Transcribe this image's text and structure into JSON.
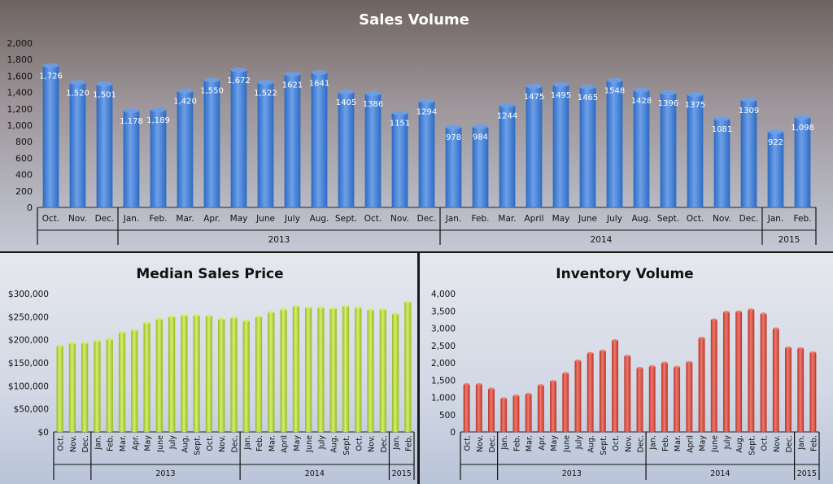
{
  "colors": {
    "sales_bar": "#2f6cc4",
    "sales_bar_light": "#6ea0e8",
    "price_bar": "#9abf2a",
    "price_bar_light": "#d6ef6c",
    "inventory_bar": "#c0392b",
    "inventory_bar_light": "#ee7a6e"
  },
  "chart_data": [
    {
      "type": "bar",
      "title": "Sales Volume",
      "xlabel": "",
      "ylabel": "",
      "ylim": [
        0,
        2000
      ],
      "yticks": [
        "0",
        "200",
        "400",
        "600",
        "800",
        "1,000",
        "1,200",
        "1,400",
        "1,600",
        "1,800",
        "2,000"
      ],
      "categories": [
        "Oct.",
        "Nov.",
        "Dec.",
        "Jan.",
        "Feb.",
        "Mar.",
        "Apr.",
        "May",
        "June",
        "July",
        "Aug.",
        "Sept.",
        "Oct.",
        "Nov.",
        "Dec.",
        "Jan.",
        "Feb.",
        "Mar.",
        "April",
        "May",
        "June",
        "July",
        "Aug.",
        "Sept.",
        "Oct.",
        "Nov.",
        "Dec.",
        "Jan.",
        "Feb."
      ],
      "values": [
        1726,
        1520,
        1501,
        1178,
        1189,
        1420,
        1550,
        1672,
        1522,
        1621,
        1641,
        1405,
        1386,
        1151,
        1294,
        978,
        984,
        1244,
        1475,
        1495,
        1465,
        1548,
        1428,
        1396,
        1375,
        1081,
        1309,
        922,
        1098
      ],
      "data_labels": [
        "1,726",
        "1,520",
        "1,501",
        "1,178",
        "1,189",
        "1,420",
        "1,550",
        "1,672",
        "1,522",
        "1621",
        "1641",
        "1405",
        "1386",
        "1151",
        "1294",
        "978",
        "984",
        "1244",
        "1475",
        "1495",
        "1465",
        "1548",
        "1428",
        "1396",
        "1375",
        "1081",
        "1309",
        "922",
        "1,098"
      ],
      "year_groups": [
        {
          "label": "",
          "start": 0,
          "count": 3
        },
        {
          "label": "2013",
          "start": 3,
          "count": 12
        },
        {
          "label": "2014",
          "start": 15,
          "count": 12
        },
        {
          "label": "2015",
          "start": 27,
          "count": 2
        }
      ]
    },
    {
      "type": "bar",
      "title": "Median Sales Price",
      "xlabel": "",
      "ylabel": "",
      "ylim": [
        0,
        300000
      ],
      "yticks": [
        "$0",
        "$50,000",
        "$100,000",
        "$150,000",
        "$200,000",
        "$250,000",
        "$300,000"
      ],
      "categories": [
        "Oct.",
        "Nov.",
        "Dec.",
        "Jan.",
        "Feb.",
        "Mar.",
        "Apr.",
        "May",
        "June",
        "July",
        "Aug.",
        "Sept.",
        "Oct.",
        "Nov.",
        "Dec.",
        "Jan.",
        "Feb.",
        "Mar.",
        "April",
        "May",
        "June",
        "July",
        "Aug.",
        "Sept.",
        "Oct.",
        "Nov.",
        "Dec.",
        "Jan.",
        "Feb."
      ],
      "values": [
        187000,
        193000,
        193000,
        198000,
        201000,
        216000,
        221000,
        237000,
        245000,
        250000,
        253000,
        253000,
        252000,
        245000,
        248000,
        241000,
        250000,
        260000,
        266000,
        273000,
        270000,
        270000,
        268000,
        273000,
        270000,
        265000,
        266000,
        256000,
        282000
      ],
      "year_groups": [
        {
          "label": "",
          "start": 0,
          "count": 3
        },
        {
          "label": "2013",
          "start": 3,
          "count": 12
        },
        {
          "label": "2014",
          "start": 15,
          "count": 12
        },
        {
          "label": "2015",
          "start": 27,
          "count": 2
        }
      ]
    },
    {
      "type": "bar",
      "title": "Inventory Volume",
      "xlabel": "",
      "ylabel": "",
      "ylim": [
        0,
        4000
      ],
      "yticks": [
        "0",
        "500",
        "1,000",
        "1,500",
        "2,000",
        "2,500",
        "3,000",
        "3,500",
        "4,000"
      ],
      "categories": [
        "Oct.",
        "Nov.",
        "Dec.",
        "Jan.",
        "Feb.",
        "Mar.",
        "Apr.",
        "May",
        "June",
        "July",
        "Aug.",
        "Sept.",
        "Oct.",
        "Nov.",
        "Dec.",
        "Jan.",
        "Feb.",
        "Mar.",
        "April",
        "May",
        "June",
        "July",
        "Aug.",
        "Sept.",
        "Oct.",
        "Nov.",
        "Dec.",
        "Jan.",
        "Feb."
      ],
      "values": [
        1380,
        1380,
        1250,
        970,
        1050,
        1100,
        1350,
        1470,
        1700,
        2060,
        2280,
        2350,
        2650,
        2200,
        1850,
        1900,
        2000,
        1880,
        2020,
        2720,
        3250,
        3470,
        3480,
        3540,
        3420,
        2990,
        2440,
        2420,
        2300
      ],
      "year_groups": [
        {
          "label": "",
          "start": 0,
          "count": 3
        },
        {
          "label": "2013",
          "start": 3,
          "count": 12
        },
        {
          "label": "2014",
          "start": 15,
          "count": 12
        },
        {
          "label": "2015",
          "start": 27,
          "count": 2
        }
      ]
    }
  ]
}
